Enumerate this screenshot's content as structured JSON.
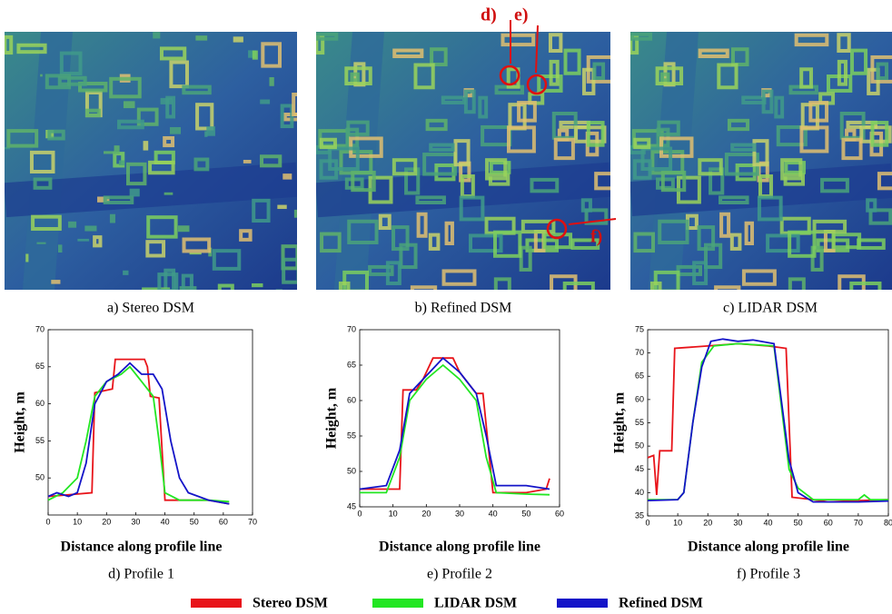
{
  "panels": [
    {
      "caption": "a) Stereo DSM"
    },
    {
      "caption": "b) Refined DSM",
      "annotations": [
        "d)",
        "e)",
        "f)"
      ]
    },
    {
      "caption": "c) LIDAR DSM"
    }
  ],
  "chart_data": [
    {
      "type": "line",
      "caption": "d) Profile 1",
      "xlabel": "Distance along profile line",
      "ylabel": "Height, m",
      "xlim": [
        0,
        70
      ],
      "xticks": [
        0,
        10,
        20,
        30,
        40,
        50,
        60,
        70
      ],
      "ylim": [
        45,
        70
      ],
      "yticks": [
        50,
        55,
        60,
        65,
        70
      ],
      "series": [
        {
          "color": "#e8141a",
          "x": [
            0,
            15,
            16,
            22,
            23,
            33,
            34,
            35,
            38,
            40,
            55,
            62
          ],
          "values": [
            47.5,
            48,
            61.5,
            62,
            66,
            66,
            65,
            61,
            60.8,
            47,
            47,
            46.5
          ]
        },
        {
          "color": "#22e622",
          "x": [
            0,
            5,
            10,
            13,
            16,
            20,
            25,
            28,
            32,
            36,
            38,
            40,
            45,
            55,
            62
          ],
          "values": [
            47,
            48,
            50,
            55,
            61,
            63,
            64,
            65,
            63,
            61,
            55,
            48,
            47,
            47,
            46.8
          ]
        },
        {
          "color": "#1414c8",
          "x": [
            0,
            3,
            7,
            10,
            13,
            16,
            20,
            24,
            28,
            32,
            36,
            39,
            42,
            45,
            48,
            55,
            62
          ],
          "values": [
            47.5,
            48,
            47.5,
            48,
            52,
            60,
            63,
            64,
            65.5,
            64,
            64,
            62,
            55,
            50,
            48,
            47,
            46.5
          ]
        }
      ]
    },
    {
      "type": "line",
      "caption": "e) Profile 2",
      "xlabel": "Distance along profile line",
      "ylabel": "Height, m",
      "xlim": [
        0,
        60
      ],
      "xticks": [
        0,
        10,
        20,
        30,
        40,
        50,
        60
      ],
      "ylim": [
        45,
        70
      ],
      "yticks": [
        45,
        50,
        55,
        60,
        65,
        70
      ],
      "series": [
        {
          "color": "#e8141a",
          "x": [
            0,
            12,
            13,
            17,
            19,
            22,
            28,
            30,
            35,
            37,
            40,
            50,
            56,
            57
          ],
          "values": [
            47.5,
            47.5,
            61.5,
            61.5,
            63,
            66,
            66,
            64,
            61,
            61,
            47,
            47,
            47.5,
            49
          ]
        },
        {
          "color": "#22e622",
          "x": [
            0,
            8,
            12,
            15,
            20,
            25,
            30,
            35,
            38,
            41,
            50,
            57
          ],
          "values": [
            47,
            47,
            52,
            60,
            63,
            65,
            63,
            60,
            52,
            47,
            46.8,
            46.7
          ]
        },
        {
          "color": "#1414c8",
          "x": [
            0,
            8,
            12,
            15,
            20,
            25,
            30,
            35,
            38,
            41,
            50,
            57
          ],
          "values": [
            47.5,
            48,
            53,
            61,
            63.5,
            66,
            64,
            61,
            55,
            48,
            48,
            47.5
          ]
        }
      ]
    },
    {
      "type": "line",
      "caption": "f) Profile 3",
      "xlabel": "Distance along profile line",
      "ylabel": "Height, m",
      "xlim": [
        0,
        80
      ],
      "xticks": [
        0,
        10,
        20,
        30,
        40,
        50,
        60,
        70,
        80
      ],
      "ylim": [
        35,
        75
      ],
      "yticks": [
        35,
        40,
        45,
        50,
        55,
        60,
        65,
        70,
        75
      ],
      "series": [
        {
          "color": "#e8141a",
          "x": [
            0,
            2,
            3,
            4,
            8,
            9,
            20,
            30,
            40,
            46,
            48,
            55,
            60,
            70,
            80
          ],
          "values": [
            47.5,
            48,
            39.5,
            49,
            49,
            71,
            71.5,
            72,
            71.5,
            71,
            39,
            38.5,
            38,
            38.3,
            38.5
          ]
        },
        {
          "color": "#22e622",
          "x": [
            0,
            10,
            12,
            15,
            18,
            22,
            30,
            42,
            47,
            50,
            55,
            70,
            72,
            74,
            80
          ],
          "values": [
            38.5,
            38.5,
            40,
            55,
            68,
            71.5,
            72,
            71.5,
            45,
            41,
            38.5,
            38.5,
            39.5,
            38.5,
            38.5
          ]
        },
        {
          "color": "#1414c8",
          "x": [
            0,
            10,
            12,
            15,
            18,
            21,
            25,
            30,
            35,
            42,
            47,
            50,
            55,
            70,
            80
          ],
          "values": [
            38.3,
            38.5,
            40,
            55,
            67,
            72.5,
            73,
            72.5,
            72.8,
            72,
            47,
            40,
            38,
            38,
            38.2
          ]
        }
      ]
    }
  ],
  "legend": [
    {
      "name": "Stereo DSM",
      "color": "#e8141a"
    },
    {
      "name": "LIDAR DSM",
      "color": "#22e622"
    },
    {
      "name": "Refined DSM",
      "color": "#1414c8"
    }
  ]
}
